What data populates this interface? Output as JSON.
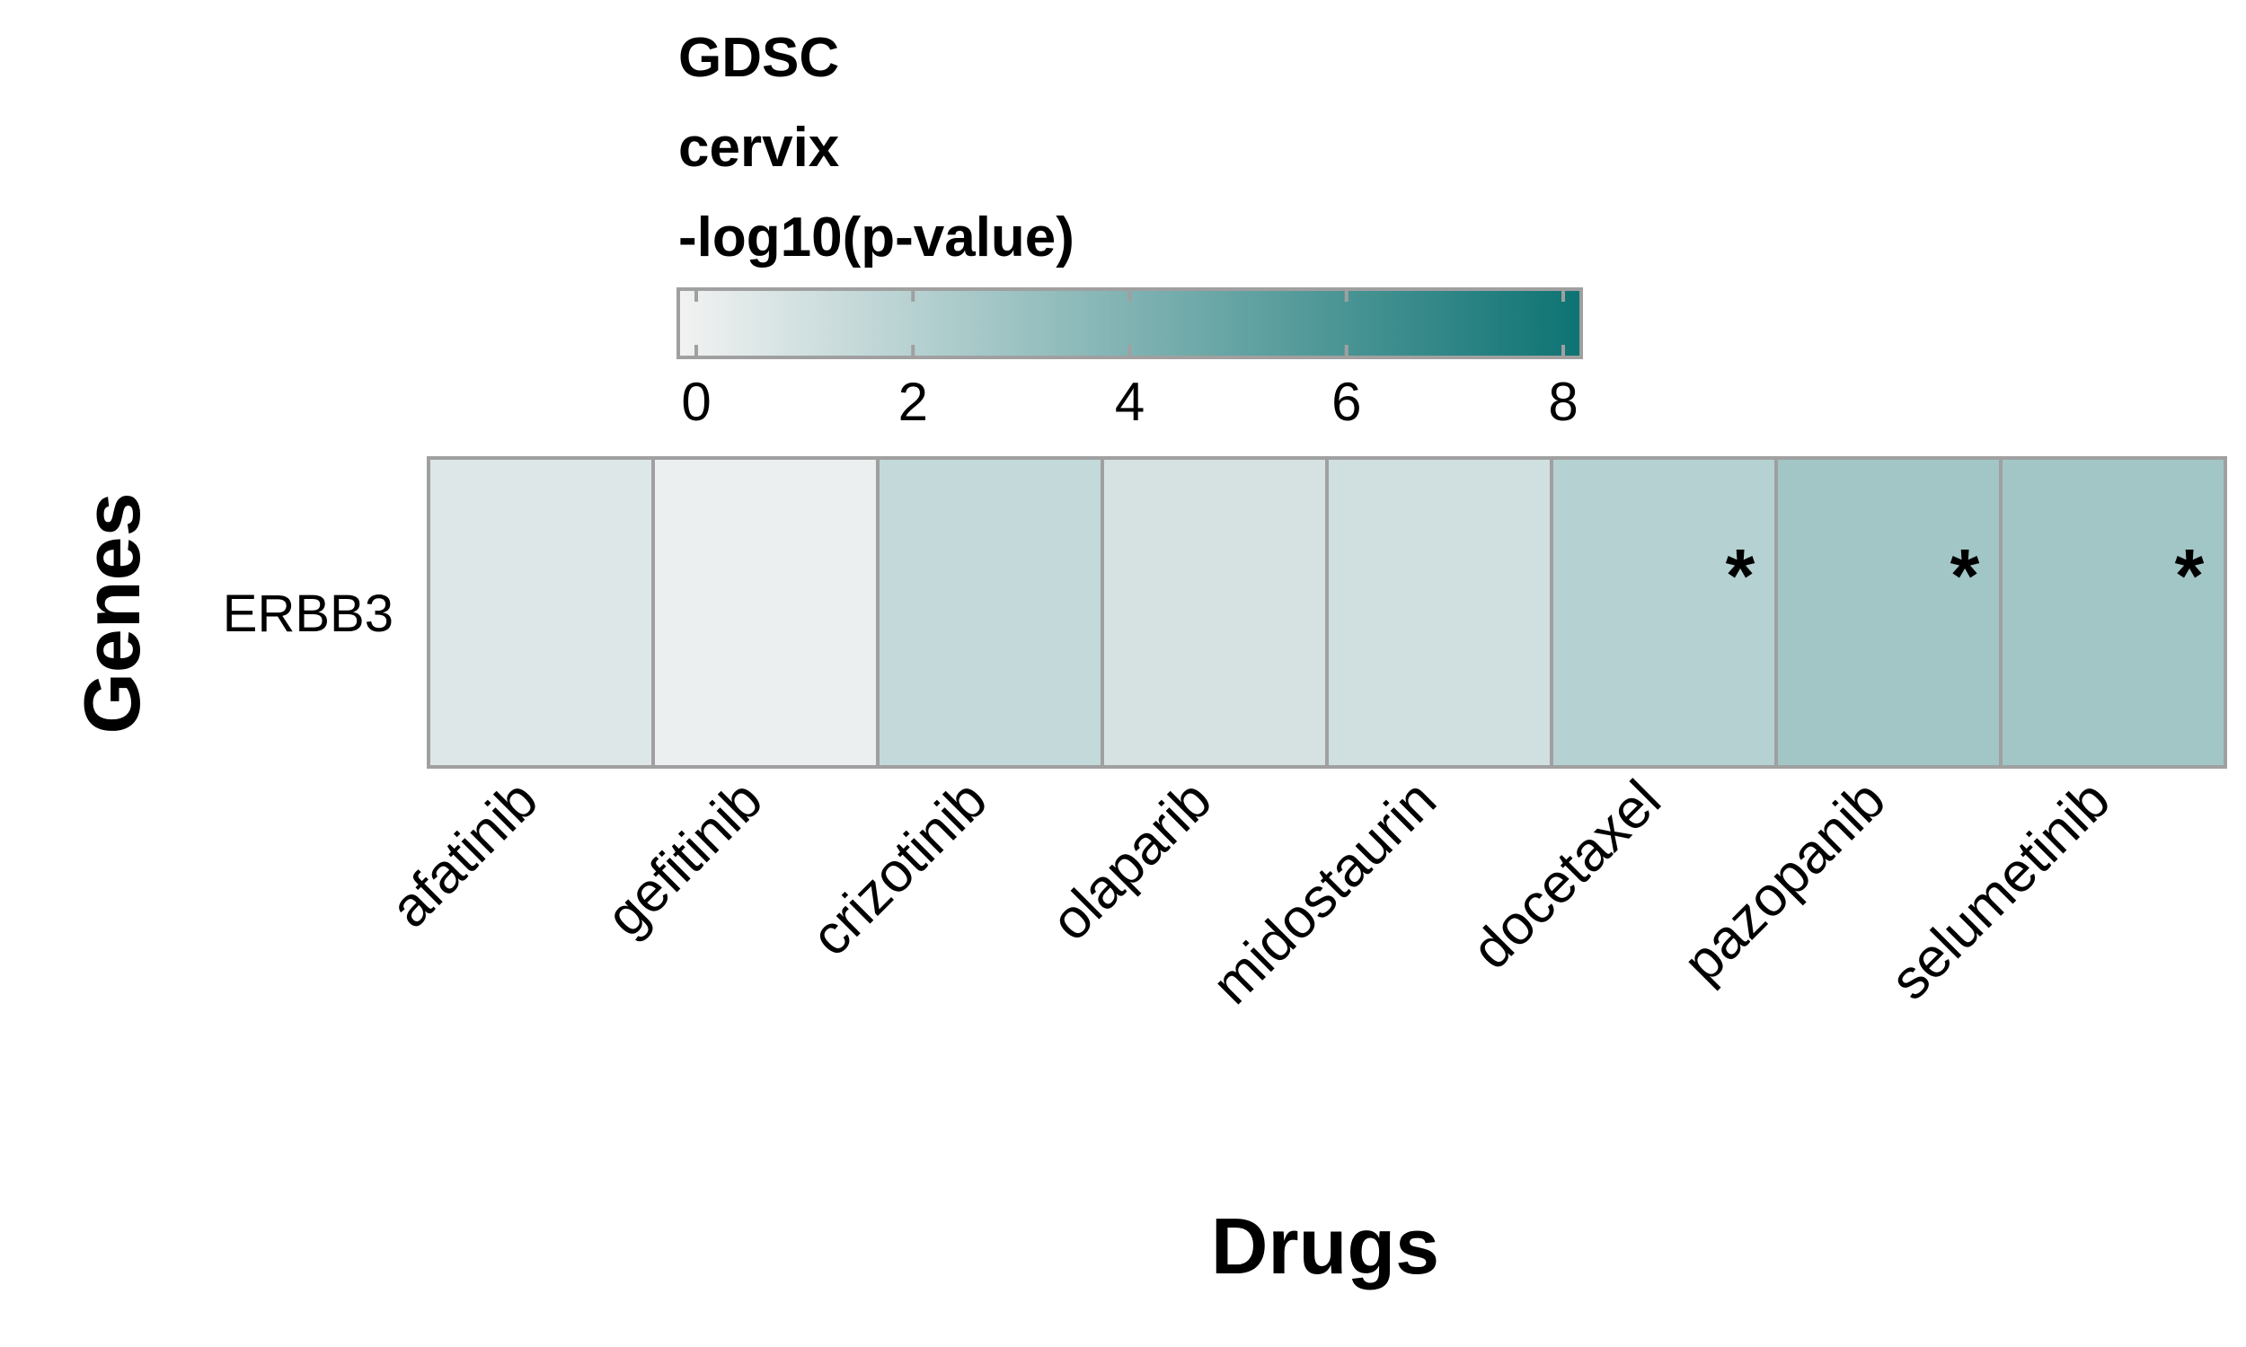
{
  "chart_data": {
    "type": "heatmap",
    "legend": {
      "title_lines": [
        "GDSC",
        "cervix",
        "-log10(p-value)"
      ],
      "ticks": [
        "0",
        "2",
        "4",
        "6",
        "8"
      ],
      "range": [
        0,
        8
      ],
      "color_low": "#f2f2f2",
      "color_high": "#0e7373"
    },
    "xlabel": "Drugs",
    "ylabel": "Genes",
    "rows": [
      "ERBB3"
    ],
    "columns": [
      "afatinib",
      "gefitinib",
      "crizotinib",
      "olaparib",
      "midostaurin",
      "docetaxel",
      "pazopanib",
      "selumetinib"
    ],
    "values": [
      [
        0.7,
        0.2,
        1.6,
        1.0,
        1.2,
        2.1,
        2.8,
        2.8
      ]
    ],
    "significance_marker": "*",
    "significant": [
      [
        false,
        false,
        false,
        false,
        false,
        true,
        true,
        true
      ]
    ],
    "cell_border_color": "#a0a0a0"
  }
}
